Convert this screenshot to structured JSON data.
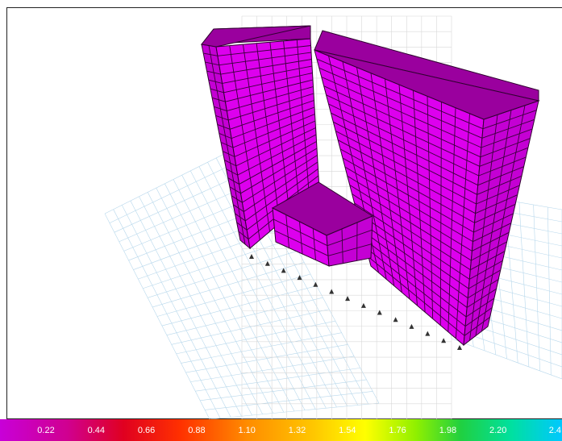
{
  "color_bar": {
    "labels": [
      "0.22",
      "0.44",
      "0.66",
      "0.88",
      "1.10",
      "1.32",
      "1.54",
      "1.76",
      "1.98",
      "2.20",
      "2.4"
    ]
  }
}
